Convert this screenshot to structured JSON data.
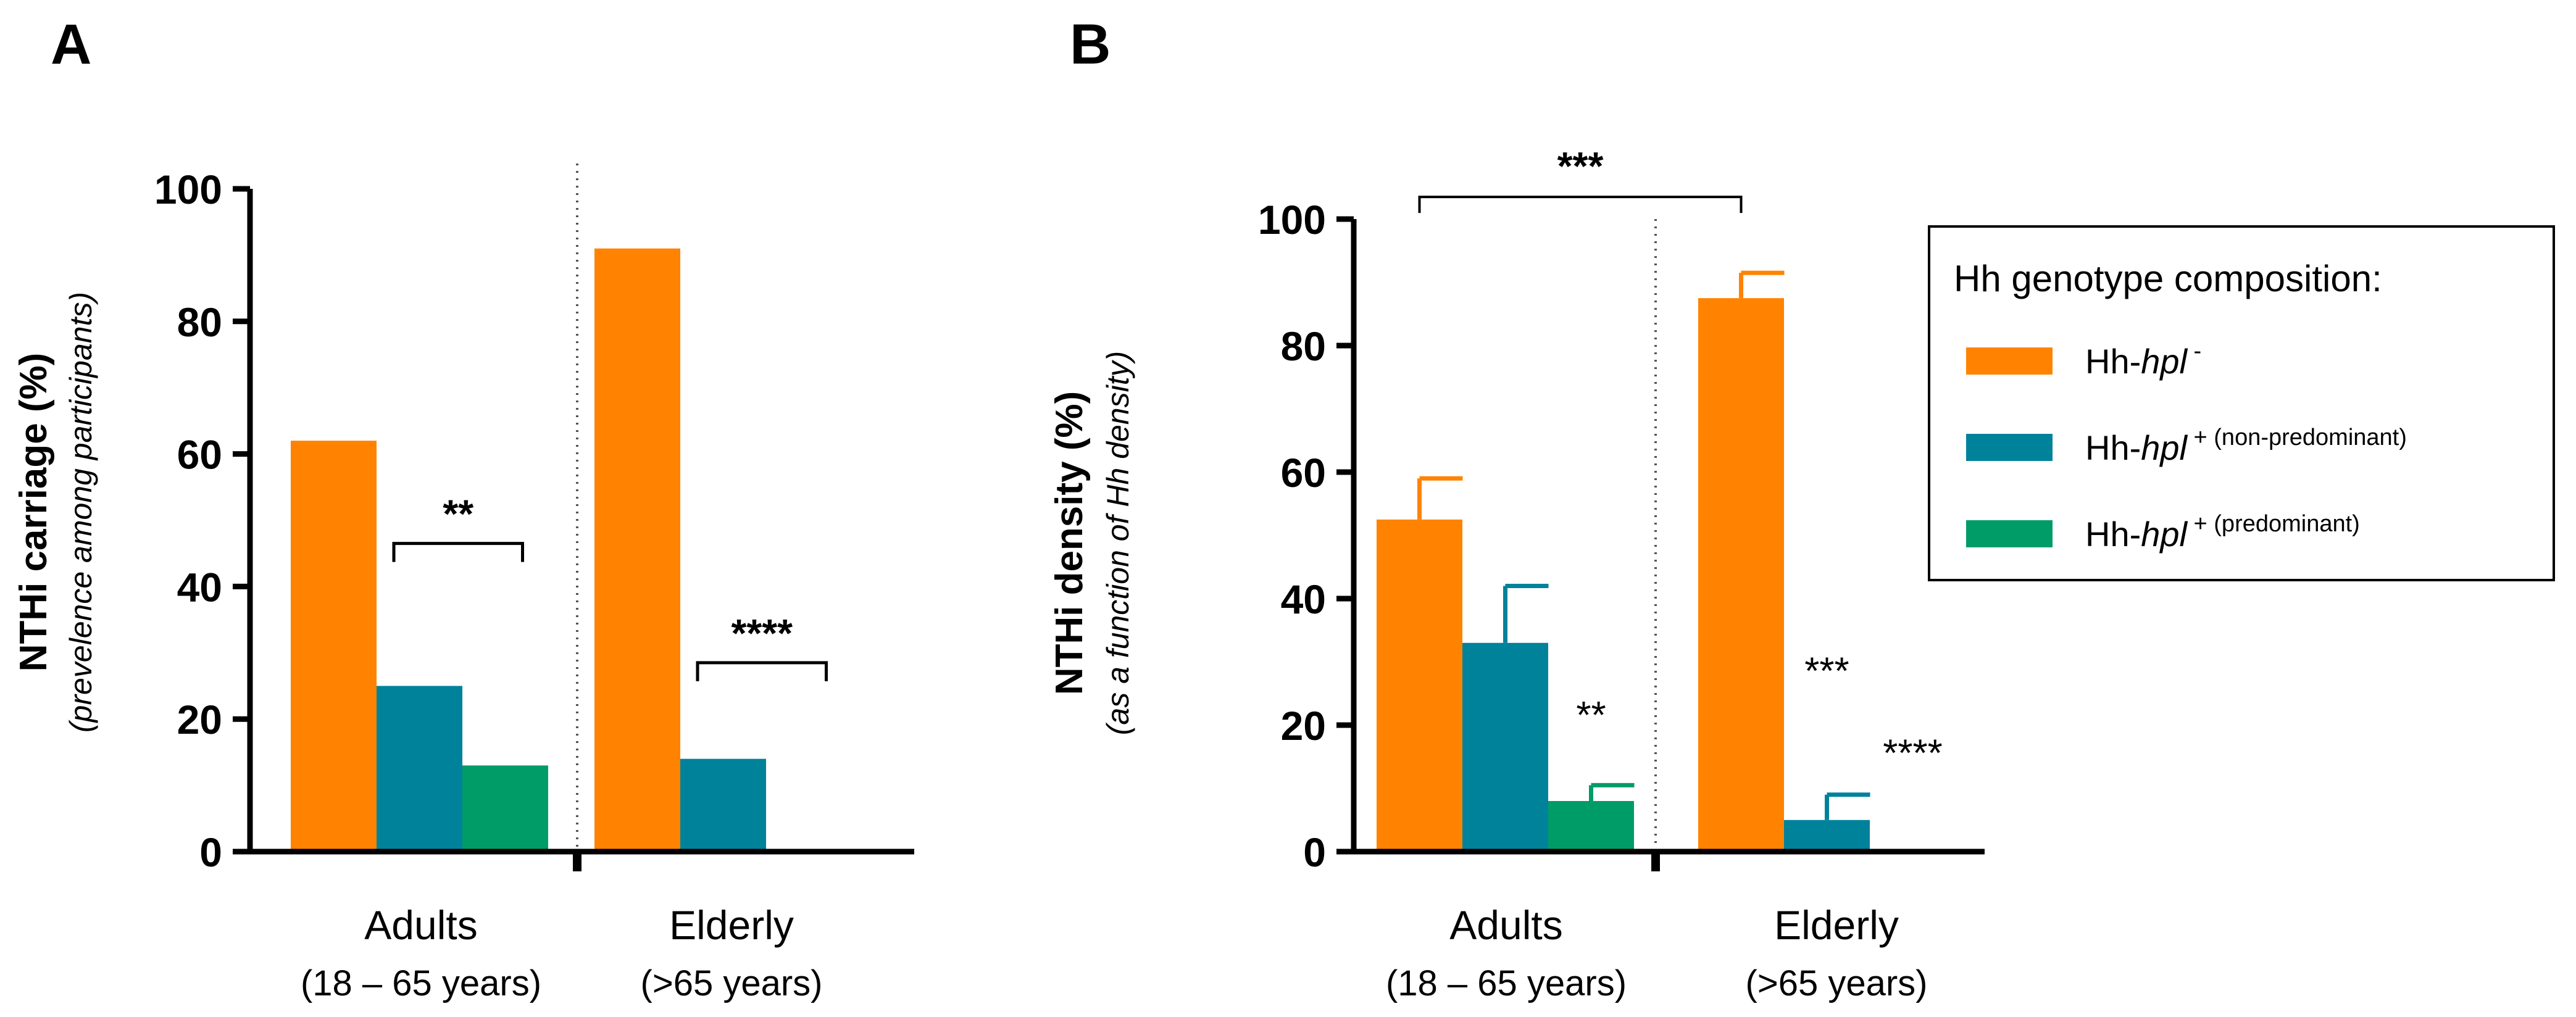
{
  "panels": {
    "a_label": "A",
    "b_label": "B"
  },
  "colors": {
    "hpl_neg": "#FF8300",
    "hpl_pos_nonpred": "#00829B",
    "hpl_pos_pred": "#009C68",
    "axis": "#000000"
  },
  "chart_data": [
    {
      "panel": "A",
      "type": "bar",
      "ylabel": "NTHi carriage (%)",
      "ylabel_sub": "(prevelence among participants)",
      "ylim": [
        0,
        100
      ],
      "yticks": [
        0,
        20,
        40,
        60,
        80,
        100
      ],
      "groups": [
        {
          "name": "Adults",
          "sub": "(18 – 65 years)"
        },
        {
          "name": "Elderly",
          "sub": "(>65 years)"
        }
      ],
      "series": [
        {
          "name": "Hh-hpl -",
          "values": [
            62,
            91
          ]
        },
        {
          "name": "Hh-hpl + (non-predominant)",
          "values": [
            25,
            14
          ]
        },
        {
          "name": "Hh-hpl + (predominant)",
          "values": [
            13,
            0
          ]
        }
      ],
      "brackets": [
        {
          "group": 0,
          "from": 1,
          "to": 2,
          "y": 46.5,
          "label": "**"
        },
        {
          "group": 1,
          "from": 1,
          "to": 2,
          "y": 28.5,
          "label": "****"
        }
      ]
    },
    {
      "panel": "B",
      "type": "bar",
      "ylabel": "NTHi density (%)",
      "ylabel_sub": "(as a function of Hh density)",
      "ylim": [
        0,
        100
      ],
      "yticks": [
        0,
        20,
        40,
        60,
        80,
        100
      ],
      "groups": [
        {
          "name": "Adults",
          "sub": "(18 – 65 years)"
        },
        {
          "name": "Elderly",
          "sub": "(>65 years)"
        }
      ],
      "series": [
        {
          "name": "Hh-hpl -",
          "values": [
            52.5,
            87.5
          ],
          "errors": [
            6.5,
            4.0
          ]
        },
        {
          "name": "Hh-hpl + (non-predominant)",
          "values": [
            33,
            5
          ],
          "errors": [
            9.0,
            4.0
          ]
        },
        {
          "name": "Hh-hpl + (predominant)",
          "values": [
            8,
            0
          ],
          "errors": [
            2.5,
            0
          ]
        }
      ],
      "star_labels": [
        {
          "group": 0,
          "series": 2,
          "y": 19.5,
          "label": "**"
        },
        {
          "group": 1,
          "series": 1,
          "y": 26.5,
          "label": "***"
        },
        {
          "group": 1,
          "series": 2,
          "y": 13.5,
          "label": "****"
        }
      ],
      "bracket": {
        "from_group": 0,
        "to_group": 1,
        "series": 0,
        "y": 103.5,
        "label": "***"
      }
    }
  ],
  "legend": {
    "title": "Hh genotype composition:",
    "items": [
      {
        "prefix": "Hh-",
        "italic": "hpl",
        "sup": " -"
      },
      {
        "prefix": "Hh-",
        "italic": "hpl",
        "sup": " + (non-predominant)"
      },
      {
        "prefix": "Hh-",
        "italic": "hpl",
        "sup": " + (predominant)"
      }
    ]
  }
}
